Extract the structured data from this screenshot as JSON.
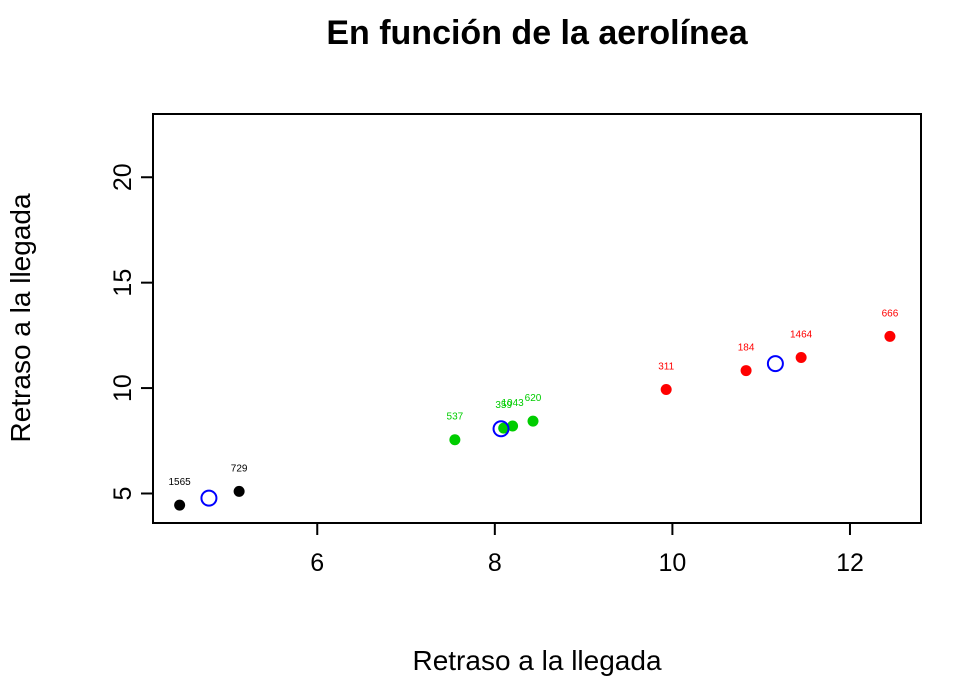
{
  "chart_data": {
    "type": "scatter",
    "title": "En función de la aerolínea",
    "xlabel": "Retraso a la llegada",
    "ylabel": "Retraso a la llegada",
    "xlim": [
      4.15,
      12.8
    ],
    "ylim": [
      3.6,
      23
    ],
    "x_ticks": [
      6,
      8,
      10,
      12
    ],
    "y_ticks": [
      5,
      10,
      15,
      20
    ],
    "grid": false,
    "colors": {
      "group1": "#000000",
      "group2": "#00cd00",
      "group3": "#ff0000",
      "centroid": "#0000ff"
    },
    "series": [
      {
        "color": "group1",
        "points": [
          {
            "x": 4.45,
            "y": 4.45,
            "label": "1565"
          },
          {
            "x": 5.12,
            "y": 5.1,
            "label": "729"
          }
        ]
      },
      {
        "color": "group2",
        "points": [
          {
            "x": 7.55,
            "y": 7.55,
            "label": "537"
          },
          {
            "x": 8.1,
            "y": 8.1,
            "label": "359"
          },
          {
            "x": 8.2,
            "y": 8.2,
            "label": "1043"
          },
          {
            "x": 8.43,
            "y": 8.43,
            "label": "620"
          }
        ]
      },
      {
        "color": "group3",
        "points": [
          {
            "x": 9.93,
            "y": 9.93,
            "label": "311"
          },
          {
            "x": 10.83,
            "y": 10.83,
            "label": "184"
          },
          {
            "x": 11.45,
            "y": 11.45,
            "label": "1464"
          },
          {
            "x": 12.45,
            "y": 12.45,
            "label": "666"
          }
        ]
      }
    ],
    "centroids": [
      {
        "x": 4.78,
        "y": 4.78
      },
      {
        "x": 8.07,
        "y": 8.07
      },
      {
        "x": 11.16,
        "y": 11.16
      }
    ]
  }
}
